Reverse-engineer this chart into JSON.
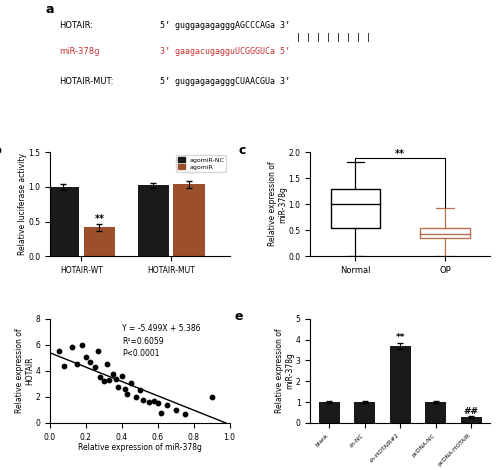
{
  "panel_a": {
    "bg_color": "#6BBFBF",
    "lines": [
      {
        "label": "HOTAIR:",
        "seq": "5’ guggagagagggAGCCCAGa 3’",
        "color": "black"
      },
      {
        "label": "miR-378g",
        "seq": "3’ gaagacugagguUCGGGUCa 5’",
        "color": "#cc3333"
      },
      {
        "label": "HOTAIR-MUT:",
        "seq": "5’ guggagagagggCUAACGUa 3’",
        "color": "black"
      }
    ],
    "pipe_text": "| | | | | | | |"
  },
  "panel_b": {
    "groups": [
      "HOTAIR-WT",
      "HOTAIR-MUT"
    ],
    "bar1_vals": [
      1.0,
      1.02
    ],
    "bar1_errs": [
      0.04,
      0.04
    ],
    "bar2_vals": [
      0.42,
      1.04
    ],
    "bar2_errs": [
      0.05,
      0.05
    ],
    "bar1_color": "#1a1a1a",
    "bar2_color": "#9b4f2a",
    "ylabel": "Relative luciferase activity",
    "ylim": [
      0,
      1.5
    ],
    "yticks": [
      0.0,
      0.5,
      1.0,
      1.5
    ],
    "legend_labels": [
      "agomiR-NC",
      "agomiR"
    ],
    "sig_label": "**"
  },
  "panel_c": {
    "normal_box": {
      "whislo": 0.0,
      "q1": 0.55,
      "med": 1.0,
      "q3": 1.3,
      "whishi": 1.8
    },
    "op_box": {
      "whislo": 0.0,
      "q1": 0.35,
      "med": 0.43,
      "q3": 0.55,
      "whishi": 0.92
    },
    "normal_color": "black",
    "op_color": "#b87050",
    "xlabels": [
      "Normal",
      "OP"
    ],
    "ylabel": "Relative expression of\nmiR-378g",
    "ylim": [
      0.0,
      2.0
    ],
    "yticks": [
      0.0,
      0.5,
      1.0,
      1.5,
      2.0
    ],
    "sig_label": "**"
  },
  "panel_d": {
    "scatter_x": [
      0.05,
      0.08,
      0.12,
      0.15,
      0.18,
      0.2,
      0.22,
      0.25,
      0.27,
      0.28,
      0.3,
      0.32,
      0.33,
      0.35,
      0.37,
      0.38,
      0.4,
      0.42,
      0.43,
      0.45,
      0.48,
      0.5,
      0.52,
      0.55,
      0.58,
      0.6,
      0.62,
      0.65,
      0.7,
      0.75,
      0.9
    ],
    "scatter_y": [
      5.5,
      4.4,
      5.8,
      4.5,
      6.0,
      5.1,
      4.7,
      4.3,
      5.5,
      3.5,
      3.2,
      4.5,
      3.3,
      3.8,
      3.4,
      2.8,
      3.6,
      2.6,
      2.2,
      3.1,
      2.0,
      2.5,
      1.8,
      1.6,
      1.7,
      1.5,
      0.8,
      1.4,
      1.0,
      0.7,
      2.0
    ],
    "xlabel": "Relative expression of miR-378g",
    "ylabel": "Relative expression of\nHOTAIR",
    "xlim": [
      0.0,
      1.0
    ],
    "ylim": [
      0,
      8
    ],
    "xticks": [
      0.0,
      0.2,
      0.4,
      0.6,
      0.8,
      1.0
    ],
    "yticks": [
      0,
      2,
      4,
      6,
      8
    ],
    "equation": "Y = -5.499X + 5.386",
    "r2": "R²=0.6059",
    "pval": "P<0.0001"
  },
  "panel_e": {
    "categories": [
      "blank",
      "sh-NC",
      "sh-HOTAIR#2",
      "pcDNA-NC",
      "pcDNA-HOTAIR"
    ],
    "values": [
      1.0,
      1.0,
      3.7,
      1.0,
      0.28
    ],
    "errors": [
      0.06,
      0.06,
      0.15,
      0.06,
      0.05
    ],
    "bar_color": "#1a1a1a",
    "ylabel": "Relative expression of\nmiR-378g",
    "ylim": [
      0,
      5
    ],
    "yticks": [
      0,
      1,
      2,
      3,
      4,
      5
    ],
    "sig_labels": {
      "sh-HOTAIR#2": "**",
      "pcDNA-HOTAIR": "##"
    }
  }
}
